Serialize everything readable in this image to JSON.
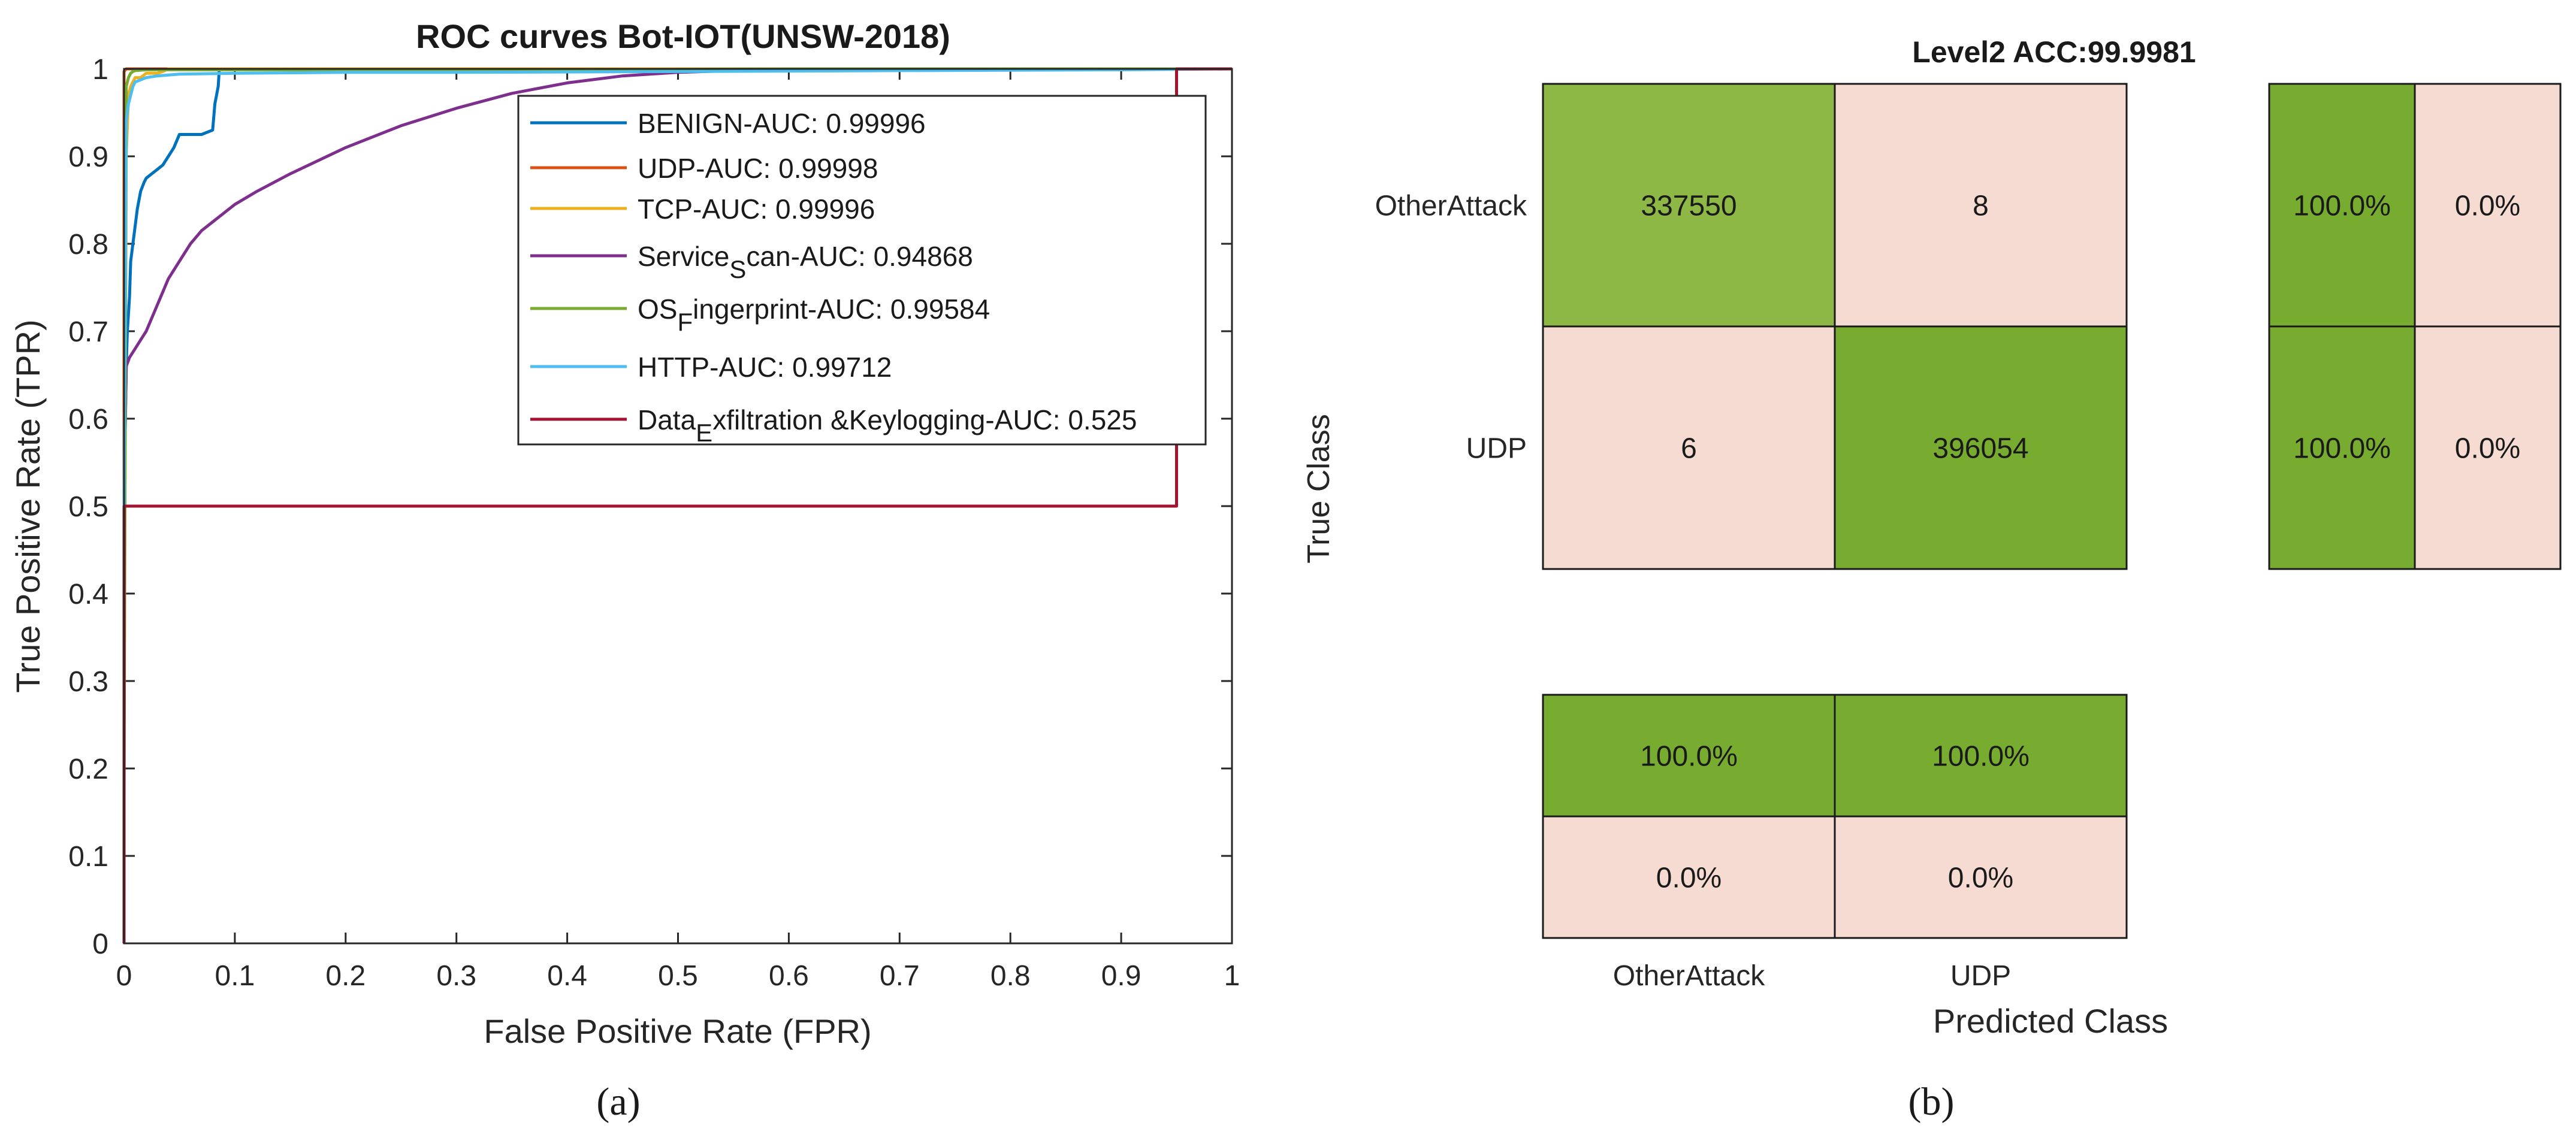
{
  "figure": {
    "label_a": "(a)",
    "label_b": "(b)"
  },
  "chart_data": [
    {
      "type": "line",
      "title": "ROC curves Bot-IOT(UNSW-2018)",
      "xlabel": "False Positive Rate (FPR)",
      "ylabel": "True Positive Rate (TPR)",
      "xlim": [
        0,
        1
      ],
      "ylim": [
        0,
        1
      ],
      "xticks": [
        0,
        0.1,
        0.2,
        0.3,
        0.4,
        0.5,
        0.6,
        0.7,
        0.8,
        0.9,
        1
      ],
      "xtick_labels": [
        "0",
        "0.1",
        "0.2",
        "0.3",
        "0.4",
        "0.5",
        "0.6",
        "0.7",
        "0.8",
        "0.9",
        "1"
      ],
      "yticks": [
        0,
        0.1,
        0.2,
        0.3,
        0.4,
        0.5,
        0.6,
        0.7,
        0.8,
        0.9,
        1
      ],
      "ytick_labels": [
        "0",
        "0.1",
        "0.2",
        "0.3",
        "0.4",
        "0.5",
        "0.6",
        "0.7",
        "0.8",
        "0.9",
        "1"
      ],
      "legend_position": "top-right",
      "series": [
        {
          "name": "BENIGN-AUC: 0.99996",
          "legend_parts": [
            {
              "t": "BENIGN-AUC: 0.99996"
            }
          ],
          "color": "#0072BD",
          "x": [
            0,
            0.001,
            0.002,
            0.003,
            0.004,
            0.005,
            0.006,
            0.008,
            0.01,
            0.012,
            0.015,
            0.018,
            0.02,
            0.025,
            0.03,
            0.035,
            0.04,
            0.045,
            0.05,
            0.055,
            0.06,
            0.07,
            0.08,
            0.082,
            0.085,
            0.086,
            1
          ],
          "y": [
            0.5,
            0.58,
            0.66,
            0.7,
            0.72,
            0.74,
            0.78,
            0.8,
            0.82,
            0.84,
            0.86,
            0.87,
            0.875,
            0.88,
            0.885,
            0.89,
            0.9,
            0.91,
            0.925,
            0.925,
            0.925,
            0.925,
            0.93,
            0.96,
            0.98,
            1.0,
            1.0
          ]
        },
        {
          "name": "UDP-AUC: 0.99998",
          "legend_parts": [
            {
              "t": "UDP-AUC: 0.99998"
            }
          ],
          "color": "#D95319",
          "x": [
            0,
            0,
            0.002,
            1
          ],
          "y": [
            0,
            0.997,
            1.0,
            1.0
          ]
        },
        {
          "name": "TCP-AUC: 0.99996",
          "legend_parts": [
            {
              "t": "TCP-AUC: 0.99996"
            }
          ],
          "color": "#EDB120",
          "x": [
            0,
            0.002,
            0.004,
            0.006,
            0.008,
            0.01,
            0.015,
            0.02,
            0.025,
            0.03,
            0.035,
            0.04,
            1
          ],
          "y": [
            0.25,
            0.9,
            0.97,
            0.98,
            0.985,
            0.99,
            0.99,
            0.995,
            0.995,
            0.995,
            0.997,
            1.0,
            1.0
          ]
        },
        {
          "name": "Service_Scan-AUC: 0.94868",
          "legend_parts": [
            {
              "t": "Service"
            },
            {
              "t": "S",
              "sub": true
            },
            {
              "t": "can-AUC: 0.94868"
            }
          ],
          "color": "#7E2F8E",
          "x": [
            0,
            0.002,
            0.005,
            0.01,
            0.015,
            0.02,
            0.03,
            0.04,
            0.05,
            0.06,
            0.07,
            0.08,
            0.09,
            0.1,
            0.12,
            0.15,
            0.2,
            0.25,
            0.3,
            0.35,
            0.4,
            0.45,
            0.5,
            0.55,
            0.6,
            1
          ],
          "y": [
            0.5,
            0.66,
            0.67,
            0.68,
            0.69,
            0.7,
            0.73,
            0.76,
            0.78,
            0.8,
            0.815,
            0.825,
            0.835,
            0.845,
            0.86,
            0.88,
            0.91,
            0.935,
            0.955,
            0.972,
            0.984,
            0.992,
            0.996,
            0.998,
            1.0,
            1.0
          ]
        },
        {
          "name": "OS_Fingerprint-AUC: 0.99584",
          "legend_parts": [
            {
              "t": "OS"
            },
            {
              "t": "F",
              "sub": true
            },
            {
              "t": "ingerprint-AUC: 0.99584"
            }
          ],
          "color": "#77AC30",
          "x": [
            0,
            0.002,
            0.004,
            0.006,
            0.008,
            0.01,
            0.02,
            0.04,
            0.1,
            0.2,
            0.4,
            0.6,
            1
          ],
          "y": [
            0.18,
            0.98,
            0.99,
            0.995,
            0.997,
            0.998,
            0.999,
            0.999,
            0.999,
            0.999,
            0.999,
            1.0,
            1.0
          ]
        },
        {
          "name": "HTTP-AUC: 0.99712",
          "legend_parts": [
            {
              "t": "HTTP-AUC: 0.99712"
            }
          ],
          "color": "#4DBEEE",
          "x": [
            0,
            0.002,
            0.004,
            0.006,
            0.008,
            0.01,
            0.02,
            0.03,
            0.05,
            0.1,
            0.2,
            0.3,
            0.5,
            0.7,
            0.9,
            1
          ],
          "y": [
            0.5,
            0.94,
            0.96,
            0.97,
            0.98,
            0.985,
            0.99,
            0.992,
            0.994,
            0.995,
            0.996,
            0.996,
            0.997,
            0.998,
            0.999,
            1.0
          ]
        },
        {
          "name": "Data_Exfiltration &Keylogging-AUC: 0.525",
          "legend_parts": [
            {
              "t": "Data"
            },
            {
              "t": "E",
              "sub": true
            },
            {
              "t": "xfiltration &Keylogging-AUC: 0.525"
            }
          ],
          "color": "#A2142F",
          "x": [
            0,
            0.0001,
            0.95,
            0.95,
            1
          ],
          "y": [
            0,
            0.5,
            0.5,
            1.0,
            1.0
          ]
        }
      ]
    },
    {
      "type": "heatmap",
      "title": "Level2 ACC:99.9981",
      "xlabel": "Predicted Class",
      "ylabel": "True Class",
      "classes": [
        "OtherAttack",
        "UDP"
      ],
      "matrix": [
        [
          337550,
          8
        ],
        [
          6,
          396054
        ]
      ],
      "row_summary": [
        [
          "100.0%",
          "0.0%"
        ],
        [
          "100.0%",
          "0.0%"
        ]
      ],
      "column_summary": [
        [
          "100.0%",
          "100.0%"
        ],
        [
          "0.0%",
          "0.0%"
        ]
      ],
      "colors": {
        "correct_dark": "#77AC30",
        "correct_light": "#8DB845",
        "incorrect": "#F5DBD1",
        "border": "#1a1a1a"
      }
    }
  ]
}
